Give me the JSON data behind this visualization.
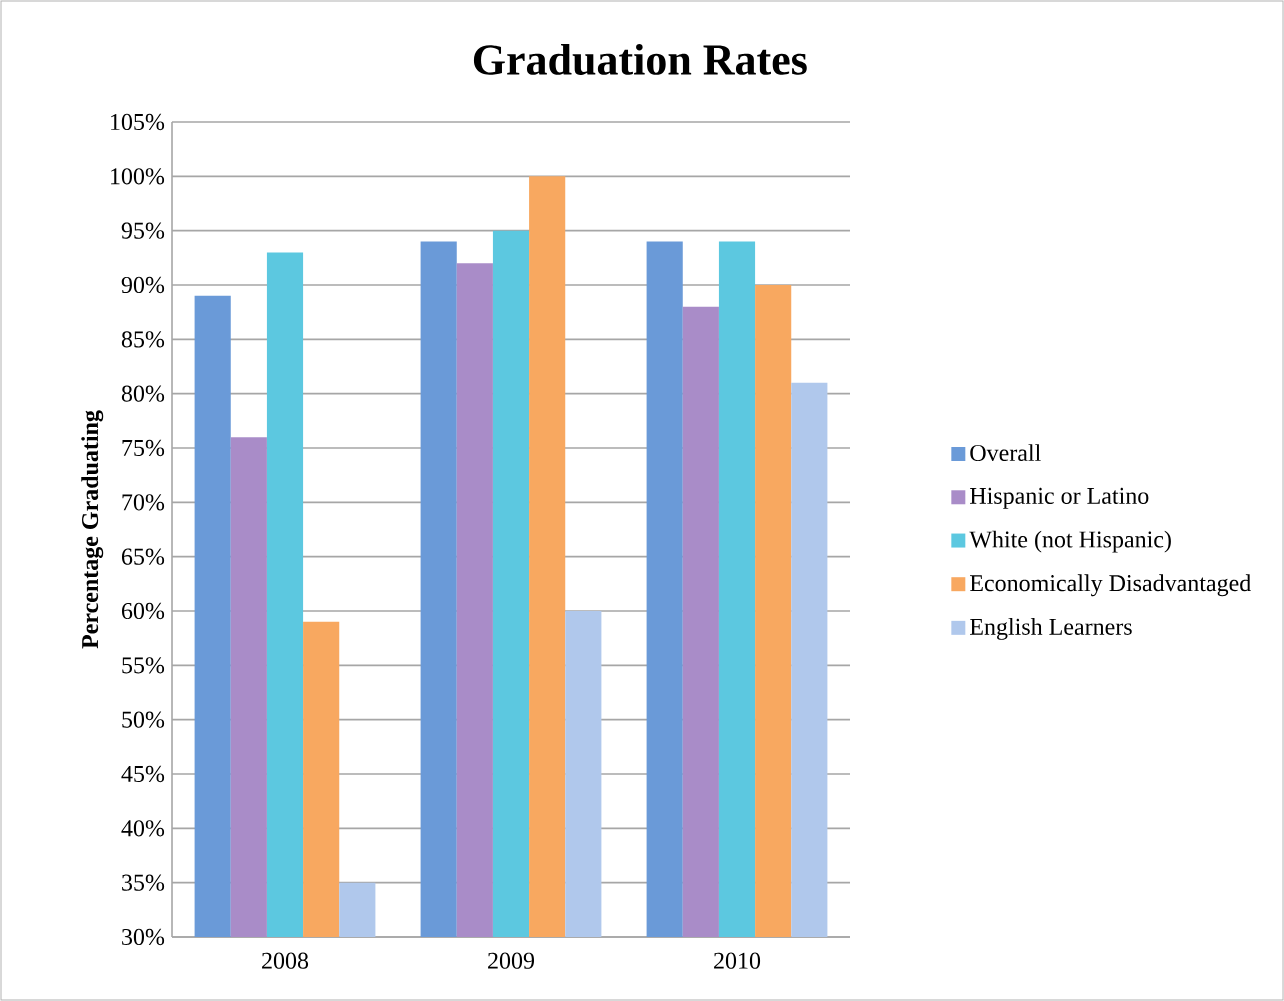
{
  "chart_data": {
    "type": "bar",
    "title": "Graduation Rates",
    "ylabel": "Percentage Graduating",
    "categories": [
      "2008",
      "2009",
      "2010"
    ],
    "series": [
      {
        "name": "Overall",
        "color": "#6a9ad8",
        "values": [
          89,
          94,
          94
        ]
      },
      {
        "name": "Hispanic or Latino",
        "color": "#a98cc8",
        "values": [
          76,
          92,
          88
        ]
      },
      {
        "name": "White (not Hispanic)",
        "color": "#5cc8e0",
        "values": [
          93,
          95,
          94
        ]
      },
      {
        "name": "Economically Disadvantaged",
        "color": "#f8a860",
        "values": [
          59,
          100,
          90
        ]
      },
      {
        "name": "English Learners",
        "color": "#b0c8ec",
        "values": [
          35,
          60,
          81
        ]
      }
    ],
    "ylim": [
      30,
      105
    ],
    "yticks": [
      {
        "value": 30,
        "label": "30%"
      },
      {
        "value": 35,
        "label": "35%"
      },
      {
        "value": 40,
        "label": "40%"
      },
      {
        "value": 45,
        "label": "45%"
      },
      {
        "value": 50,
        "label": "50%"
      },
      {
        "value": 55,
        "label": "55%"
      },
      {
        "value": 60,
        "label": "60%"
      },
      {
        "value": 65,
        "label": "65%"
      },
      {
        "value": 70,
        "label": "70%"
      },
      {
        "value": 75,
        "label": "75%"
      },
      {
        "value": 80,
        "label": "80%"
      },
      {
        "value": 85,
        "label": "85%"
      },
      {
        "value": 90,
        "label": "90%"
      },
      {
        "value": 95,
        "label": "95%"
      },
      {
        "value": 100,
        "label": "100%"
      },
      {
        "value": 105,
        "label": "105%"
      }
    ],
    "grid": "y",
    "legend": "right"
  }
}
